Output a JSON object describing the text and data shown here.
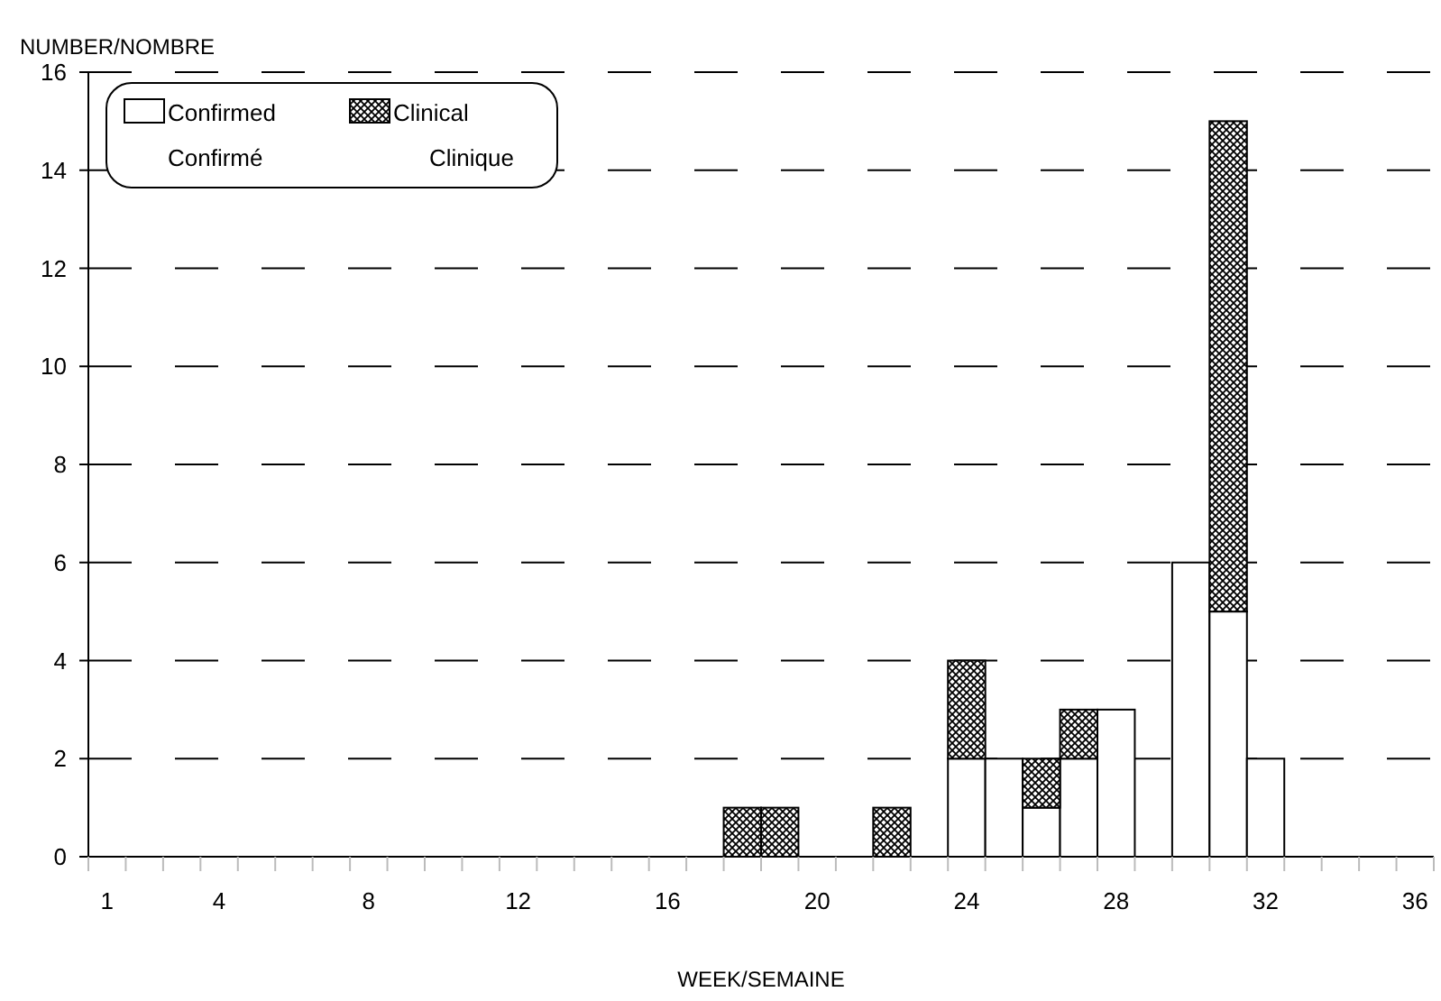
{
  "chart_data": {
    "type": "bar",
    "stacked": true,
    "xlabel": "WEEK/SEMAINE",
    "ylabel": "NUMBER/NOMBRE",
    "categories": [
      "1",
      null,
      null,
      "4",
      null,
      null,
      null,
      "8",
      null,
      null,
      null,
      "12",
      null,
      null,
      null,
      "16",
      null,
      null,
      null,
      "20",
      null,
      null,
      null,
      "24",
      null,
      null,
      null,
      "28",
      null,
      null,
      null,
      "32",
      null,
      null,
      null,
      "36"
    ],
    "series": [
      {
        "name": "Confirmed\nConfirmé",
        "color": "#ffffff",
        "values": [
          0,
          0,
          0,
          0,
          0,
          0,
          0,
          0,
          0,
          0,
          0,
          0,
          0,
          0,
          0,
          0,
          0,
          0,
          0,
          0,
          0,
          0,
          0,
          2,
          2,
          1,
          2,
          3,
          0,
          6,
          5,
          2,
          0,
          0,
          0,
          0
        ]
      },
      {
        "name": "Clinical\nClinique",
        "color": "#000000",
        "values": [
          0,
          0,
          0,
          0,
          0,
          0,
          0,
          0,
          0,
          0,
          0,
          0,
          0,
          0,
          0,
          0,
          0,
          1,
          1,
          0,
          0,
          1,
          0,
          2,
          0,
          1,
          1,
          0,
          0,
          0,
          10,
          0,
          0,
          0,
          0,
          0
        ]
      }
    ],
    "ylim": [
      0,
      16
    ],
    "yticks": [
      0,
      2,
      4,
      6,
      8,
      10,
      12,
      14,
      16
    ],
    "grid": "y",
    "line_style": "dashed",
    "legend": "top left"
  }
}
